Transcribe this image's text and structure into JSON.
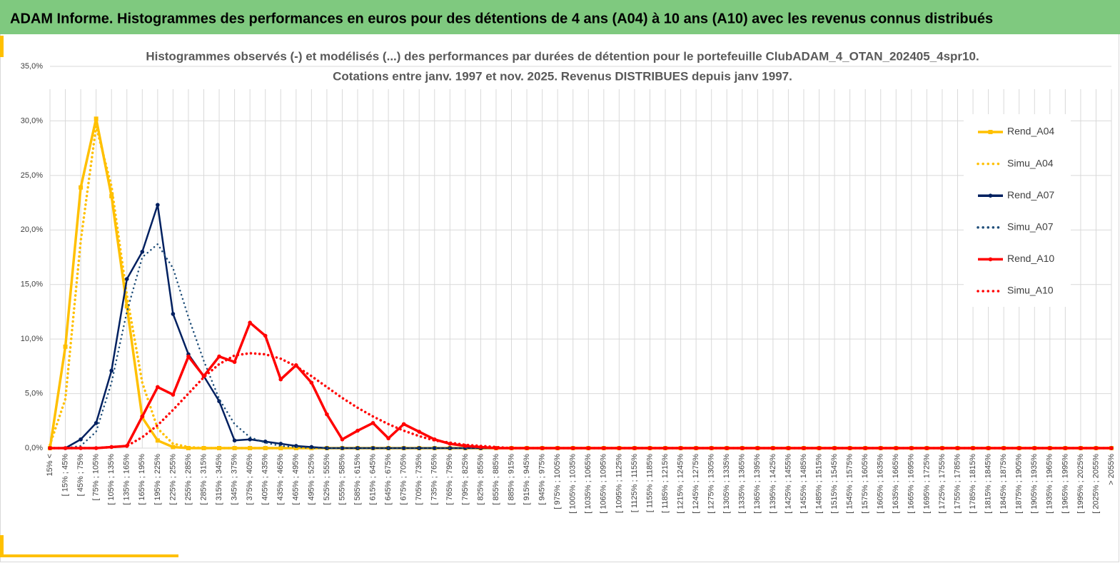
{
  "header": "ADAM Informe. Histogrammes des performances en euros pour des détentions de 4 ans (A04) à 10 ans (A10) avec les revenus connus distribués",
  "chart_data": {
    "type": "line",
    "title": "Histogrammes observés (-) et modélisés (...) des performances par durées de détention pour le portefeuille ClubADAM_4_OTAN_202405_4spr10.",
    "subtitle": "Cotations entre janv. 1997 et nov. 2025. Revenus DISTRIBUES depuis janv 1997.",
    "categories": [
      "15% <",
      "[ 15% ; 45%",
      "[ 45% ; 75%",
      "[ 75% ; 105%",
      "[ 105% ; 135%",
      "[ 135% ; 165%",
      "[ 165% ; 195%",
      "[ 195% ; 225%",
      "[ 225% ; 255%",
      "[ 255% ; 285%",
      "[ 285% ; 315%",
      "[ 315% ; 345%",
      "[ 345% ; 375%",
      "[ 375% ; 405%",
      "[ 405% ; 435%",
      "[ 435% ; 465%",
      "[ 465% ; 495%",
      "[ 495% ; 525%",
      "[ 525% ; 555%",
      "[ 555% ; 585%",
      "[ 585% ; 615%",
      "[ 615% ; 645%",
      "[ 645% ; 675%",
      "[ 675% ; 705%",
      "[ 705% ; 735%",
      "[ 735% ; 765%",
      "[ 765% ; 795%",
      "[ 795% ; 825%",
      "[ 825% ; 855%",
      "[ 855% ; 885%",
      "[ 885% ; 915%",
      "[ 915% ; 945%",
      "[ 945% ; 975%",
      "[ 975% ; 1005%",
      "[ 1005% ; 1035%",
      "[ 1035% ; 1065%",
      "[ 1065% ; 1095%",
      "[ 1095% ; 1125%",
      "[ 1125% ; 1155%",
      "[ 1155% ; 1185%",
      "[ 1185% ; 1215%",
      "[ 1215% ; 1245%",
      "[ 1245% ; 1275%",
      "[ 1275% ; 1305%",
      "[ 1305% ; 1335%",
      "[ 1335% ; 1365%",
      "[ 1365% ; 1395%",
      "[ 1395% ; 1425%",
      "[ 1425% ; 1455%",
      "[ 1455% ; 1485%",
      "[ 1485% ; 1515%",
      "[ 1515% ; 1545%",
      "[ 1545% ; 1575%",
      "[ 1575% ; 1605%",
      "[ 1605% ; 1635%",
      "[ 1635% ; 1665%",
      "[ 1665% ; 1695%",
      "[ 1695% ; 1725%",
      "[ 1725% ; 1755%",
      "[ 1755% ; 1785%",
      "[ 1785% ; 1815%",
      "[ 1815% ; 1845%",
      "[ 1845% ; 1875%",
      "[ 1875% ; 1905%",
      "[ 1905% ; 1935%",
      "[ 1935% ; 1965%",
      "[ 1965% ; 1995%",
      "[ 1995% ; 2025%",
      "[ 2025% ; 2055%",
      "> 2055%"
    ],
    "series": [
      {
        "name": "Rend_A04",
        "color": "#ffc000",
        "line_style": "solid",
        "marker": "square",
        "values": [
          0,
          9.3,
          23.9,
          30.2,
          23.1,
          13,
          2.8,
          0.7,
          0.1,
          0,
          0,
          0,
          0,
          0,
          0,
          0,
          0,
          0,
          0,
          0,
          0,
          0,
          0,
          0,
          0,
          0,
          0,
          0,
          0,
          0,
          0,
          0,
          0,
          0,
          0,
          0,
          0,
          0,
          0,
          0,
          0,
          0,
          0,
          0,
          0,
          0,
          0,
          0,
          0,
          0,
          0,
          0,
          0,
          0,
          0,
          0,
          0,
          0,
          0,
          0,
          0,
          0,
          0,
          0,
          0,
          0,
          0,
          0,
          0,
          0
        ]
      },
      {
        "name": "Simu_A04",
        "color": "#ffc000",
        "line_style": "dotted",
        "values": [
          0.3,
          4.5,
          19,
          29.5,
          24,
          14,
          6,
          1.8,
          0.4,
          0.1,
          0,
          0,
          0,
          0,
          0,
          0,
          0,
          0,
          0,
          0,
          0,
          0,
          0,
          0,
          0,
          0,
          0,
          0,
          0,
          0,
          0,
          0,
          0,
          0,
          0,
          0,
          0,
          0,
          0,
          0,
          0,
          0,
          0,
          0,
          0,
          0,
          0,
          0,
          0,
          0,
          0,
          0,
          0,
          0,
          0,
          0,
          0,
          0,
          0,
          0,
          0,
          0,
          0,
          0,
          0,
          0,
          0,
          0,
          0,
          0
        ]
      },
      {
        "name": "Rend_A07",
        "color": "#002060",
        "line_style": "solid",
        "marker": "circle",
        "values": [
          0,
          0,
          0.8,
          2.3,
          7.1,
          15.5,
          18,
          22.3,
          12.3,
          8.6,
          6.6,
          4.3,
          0.7,
          0.8,
          0.6,
          0.4,
          0.2,
          0.1,
          0,
          0,
          0,
          0,
          0,
          0,
          0,
          0,
          0,
          0,
          0,
          0,
          0,
          0,
          0,
          0,
          0,
          0,
          0,
          0,
          0,
          0,
          0,
          0,
          0,
          0,
          0,
          0,
          0,
          0,
          0,
          0,
          0,
          0,
          0,
          0,
          0,
          0,
          0,
          0,
          0,
          0,
          0,
          0,
          0,
          0,
          0,
          0,
          0,
          0,
          0,
          0
        ]
      },
      {
        "name": "Simu_A07",
        "color": "#1f4e79",
        "line_style": "dotted",
        "values": [
          0,
          0,
          0.2,
          1.5,
          6,
          12.5,
          17.5,
          18.7,
          16.5,
          12,
          8,
          4.5,
          2.2,
          1,
          0.5,
          0.2,
          0.1,
          0,
          0,
          0,
          0,
          0,
          0,
          0,
          0,
          0,
          0,
          0,
          0,
          0,
          0,
          0,
          0,
          0,
          0,
          0,
          0,
          0,
          0,
          0,
          0,
          0,
          0,
          0,
          0,
          0,
          0,
          0,
          0,
          0,
          0,
          0,
          0,
          0,
          0,
          0,
          0,
          0,
          0,
          0,
          0,
          0,
          0,
          0,
          0,
          0,
          0,
          0,
          0,
          0
        ]
      },
      {
        "name": "Rend_A10",
        "color": "#ff0000",
        "line_style": "solid",
        "marker": "circle",
        "values": [
          0,
          0,
          0,
          0,
          0.1,
          0.2,
          2.9,
          5.6,
          4.9,
          8.4,
          6.6,
          8.4,
          7.9,
          11.5,
          10.3,
          6.3,
          7.6,
          6,
          3.1,
          0.8,
          1.6,
          2.3,
          0.9,
          2.2,
          1.5,
          0.8,
          0.4,
          0.2,
          0.1,
          0,
          0,
          0,
          0,
          0,
          0,
          0,
          0,
          0,
          0,
          0,
          0,
          0,
          0,
          0,
          0,
          0,
          0,
          0,
          0,
          0,
          0,
          0,
          0,
          0,
          0,
          0,
          0,
          0,
          0,
          0,
          0,
          0,
          0,
          0,
          0,
          0,
          0,
          0,
          0,
          0
        ]
      },
      {
        "name": "Simu_A10",
        "color": "#ff0000",
        "line_style": "dotted",
        "values": [
          0,
          0,
          0,
          0,
          0.1,
          0.2,
          1,
          2.1,
          3.5,
          5,
          6.5,
          7.7,
          8.5,
          8.7,
          8.6,
          8.2,
          7.5,
          6.6,
          5.6,
          4.6,
          3.7,
          2.9,
          2.2,
          1.6,
          1.1,
          0.7,
          0.5,
          0.3,
          0.2,
          0.1,
          0,
          0,
          0,
          0,
          0,
          0,
          0,
          0,
          0,
          0,
          0,
          0,
          0,
          0,
          0,
          0,
          0,
          0,
          0,
          0,
          0,
          0,
          0,
          0,
          0,
          0,
          0,
          0,
          0,
          0,
          0,
          0,
          0,
          0,
          0,
          0,
          0,
          0,
          0,
          0
        ]
      }
    ],
    "ylim": [
      0,
      35
    ],
    "yticks": [
      {
        "value": 0,
        "label": "0,0%"
      },
      {
        "value": 5,
        "label": "5,0%"
      },
      {
        "value": 10,
        "label": "10,0%"
      },
      {
        "value": 15,
        "label": "15,0%"
      },
      {
        "value": 20,
        "label": "20,0%"
      },
      {
        "value": 25,
        "label": "25,0%"
      },
      {
        "value": 30,
        "label": "30,0%"
      },
      {
        "value": 35,
        "label": "35,0%"
      }
    ],
    "grid": true,
    "legend": "right"
  }
}
